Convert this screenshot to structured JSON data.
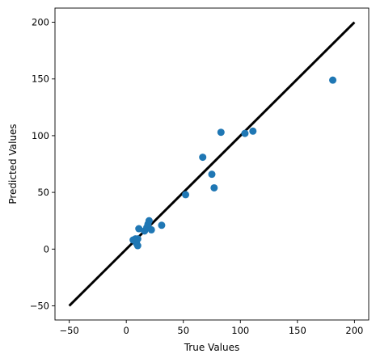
{
  "chart_data": {
    "type": "scatter",
    "title": "",
    "xlabel": "True Values",
    "ylabel": "Predicted Values",
    "xlim": [
      -62.5,
      212.5
    ],
    "ylim": [
      -62.5,
      212.5
    ],
    "xticks": [
      -50,
      0,
      50,
      100,
      150,
      200
    ],
    "yticks": [
      -50,
      0,
      50,
      100,
      150,
      200
    ],
    "tick_labels_x": [
      "−50",
      "0",
      "50",
      "100",
      "150",
      "200"
    ],
    "tick_labels_y": [
      "−50",
      "0",
      "50",
      "100",
      "150",
      "200"
    ],
    "grid": false,
    "points_color": "#1f77b4",
    "line_color": "#000000",
    "reference_line": {
      "x": [
        -50,
        200
      ],
      "y": [
        -50,
        200
      ]
    },
    "points": [
      {
        "x": 6,
        "y": 8
      },
      {
        "x": 8,
        "y": 9
      },
      {
        "x": 9,
        "y": 5
      },
      {
        "x": 10,
        "y": 3
      },
      {
        "x": 10,
        "y": 9
      },
      {
        "x": 11,
        "y": 18
      },
      {
        "x": 16,
        "y": 16
      },
      {
        "x": 18,
        "y": 19
      },
      {
        "x": 19,
        "y": 22
      },
      {
        "x": 20,
        "y": 25
      },
      {
        "x": 22,
        "y": 17
      },
      {
        "x": 31,
        "y": 21
      },
      {
        "x": 52,
        "y": 48
      },
      {
        "x": 67,
        "y": 81
      },
      {
        "x": 75,
        "y": 66
      },
      {
        "x": 77,
        "y": 54
      },
      {
        "x": 83,
        "y": 103
      },
      {
        "x": 104,
        "y": 102
      },
      {
        "x": 111,
        "y": 104
      },
      {
        "x": 181,
        "y": 149
      }
    ]
  }
}
